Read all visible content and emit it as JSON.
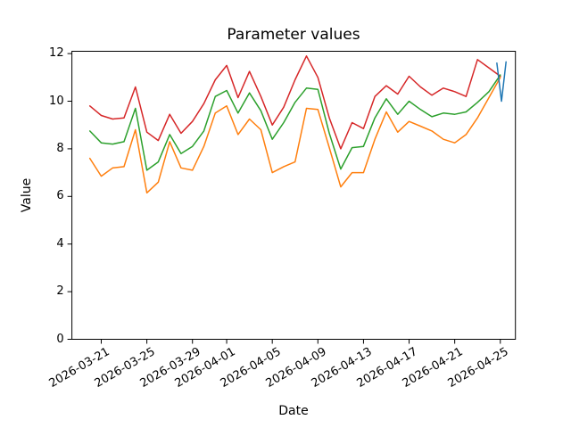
{
  "chart_data": {
    "type": "line",
    "title": "Parameter values",
    "xlabel": "Date",
    "ylabel": "Value",
    "grid": false,
    "legend": null,
    "ylim": [
      0,
      12.15
    ],
    "ytick_values": [
      0,
      2,
      4,
      6,
      8,
      10,
      12
    ],
    "xtick_labels": [
      "2026-03-21",
      "2026-03-25",
      "2026-03-29",
      "2026-04-01",
      "2026-04-05",
      "2026-04-09",
      "2026-04-13",
      "2026-04-17",
      "2026-04-21",
      "2026-04-25"
    ],
    "x_dates": [
      "2026-03-20",
      "2026-03-21",
      "2026-03-22",
      "2026-03-23",
      "2026-03-24",
      "2026-03-25",
      "2026-03-26",
      "2026-03-27",
      "2026-03-28",
      "2026-03-29",
      "2026-03-30",
      "2026-03-31",
      "2026-04-01",
      "2026-04-02",
      "2026-04-03",
      "2026-04-04",
      "2026-04-05",
      "2026-04-06",
      "2026-04-07",
      "2026-04-08",
      "2026-04-09",
      "2026-04-10",
      "2026-04-11",
      "2026-04-12",
      "2026-04-13",
      "2026-04-14",
      "2026-04-15",
      "2026-04-16",
      "2026-04-17",
      "2026-04-18",
      "2026-04-19",
      "2026-04-20",
      "2026-04-21",
      "2026-04-22",
      "2026-04-23",
      "2026-04-24",
      "2026-04-25"
    ],
    "series": [
      {
        "name": "series-red",
        "color": "#d62728",
        "values": [
          9.8,
          9.4,
          9.25,
          9.3,
          10.6,
          8.7,
          8.35,
          9.45,
          8.65,
          9.15,
          9.9,
          10.9,
          11.5,
          10.15,
          11.25,
          10.2,
          9.0,
          9.75,
          10.9,
          11.9,
          11.0,
          9.3,
          8.0,
          9.1,
          8.85,
          10.2,
          10.65,
          10.3,
          11.05,
          10.6,
          10.25,
          10.55,
          10.4,
          10.2,
          11.75,
          11.4,
          11.05
        ]
      },
      {
        "name": "series-green",
        "color": "#2ca02c",
        "values": [
          8.75,
          8.25,
          8.2,
          8.3,
          9.7,
          7.1,
          7.45,
          8.6,
          7.8,
          8.1,
          8.75,
          10.2,
          10.45,
          9.5,
          10.35,
          9.6,
          8.4,
          9.1,
          9.95,
          10.55,
          10.5,
          8.65,
          7.15,
          8.05,
          8.1,
          9.3,
          10.1,
          9.45,
          10.0,
          9.65,
          9.35,
          9.5,
          9.45,
          9.55,
          9.95,
          10.4,
          11.1
        ]
      },
      {
        "name": "series-orange",
        "color": "#ff7f0e",
        "values": [
          7.6,
          6.85,
          7.2,
          7.25,
          8.8,
          6.15,
          6.6,
          8.3,
          7.2,
          7.1,
          8.1,
          9.5,
          9.8,
          8.6,
          9.25,
          8.8,
          7.0,
          7.25,
          7.45,
          9.7,
          9.65,
          8.05,
          6.4,
          7.0,
          7.0,
          8.4,
          9.55,
          8.7,
          9.15,
          8.95,
          8.75,
          8.4,
          8.25,
          8.6,
          9.3,
          10.15,
          11.0
        ]
      },
      {
        "name": "series-blue",
        "color": "#1f77b4",
        "x_day_offsets": [
          35.7,
          36.1,
          36.5
        ],
        "values": [
          11.6,
          10.0,
          11.65
        ]
      }
    ]
  }
}
